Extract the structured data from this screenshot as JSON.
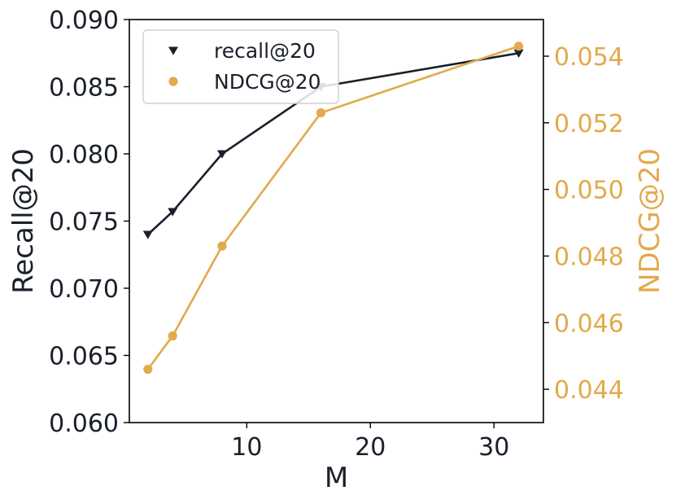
{
  "chart_data": {
    "type": "line",
    "x": [
      2,
      4,
      8,
      16,
      32
    ],
    "xlabel": "M",
    "xlim": [
      0.5,
      34
    ],
    "xticks": [
      10,
      20,
      30
    ],
    "xtick_labels": [
      "10",
      "20",
      "30"
    ],
    "series": [
      {
        "name": "recall@20",
        "axis": "left",
        "values": [
          0.074,
          0.0757,
          0.08,
          0.085,
          0.0875
        ],
        "marker": "triangle-down",
        "color": "#1a1f2b"
      },
      {
        "name": "NDCG@20",
        "axis": "right",
        "values": [
          0.0446,
          0.0456,
          0.0483,
          0.0523,
          0.0543
        ],
        "marker": "circle",
        "color": "#e3a94c"
      }
    ],
    "y_left": {
      "label": "Recall@20",
      "lim": [
        0.06,
        0.09
      ],
      "ticks": [
        0.06,
        0.065,
        0.07,
        0.075,
        0.08,
        0.085,
        0.09
      ],
      "tick_labels": [
        "0.060",
        "0.065",
        "0.070",
        "0.075",
        "0.080",
        "0.085",
        "0.090"
      ],
      "color": "#1a1f2b"
    },
    "y_right": {
      "label": "NDCG@20",
      "lim": [
        0.043,
        0.0551
      ],
      "ticks": [
        0.044,
        0.046,
        0.048,
        0.05,
        0.052,
        0.054
      ],
      "tick_labels": [
        "0.044",
        "0.046",
        "0.048",
        "0.050",
        "0.052",
        "0.054"
      ],
      "color": "#e3a94c"
    },
    "legend": {
      "placement": "top-left",
      "entries": [
        "recall@20",
        "NDCG@20"
      ]
    },
    "grid": false
  }
}
